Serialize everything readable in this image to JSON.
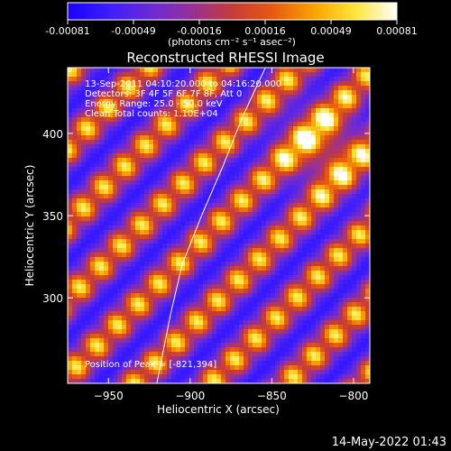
{
  "colorbar": {
    "ticks": [
      "-0.00081",
      "-0.00049",
      "-0.00016",
      "0.00016",
      "0.00049",
      "0.00081"
    ],
    "unit": "(photons cm⁻² s⁻¹ asec⁻²)",
    "colors": [
      "#1a00ff",
      "#3d1dff",
      "#6a2ad6",
      "#96309b",
      "#c53c36",
      "#e85a10",
      "#f8a400",
      "#ffe63a",
      "#ffffff"
    ]
  },
  "chart_data": {
    "type": "heatmap",
    "title": "Reconstructed RHESSI Image",
    "xlabel": "Heliocentric X (arcsec)",
    "ylabel": "Heliocentric Y (arcsec)",
    "xlim": [
      -975,
      -790
    ],
    "ylim": [
      248,
      440
    ],
    "xticks": [
      -950,
      -900,
      -850,
      -800
    ],
    "yticks": [
      300,
      350,
      400
    ],
    "xtick_labels": [
      "−950",
      "−900",
      "−850",
      "−800"
    ],
    "ytick_labels": [
      "300",
      "350",
      "400"
    ],
    "value_range": [
      -0.00081,
      0.00081
    ],
    "peak": [
      -821,
      394
    ],
    "limb_curve": [
      [
        -922,
        240
      ],
      [
        -912,
        290
      ],
      [
        -905,
        320
      ],
      [
        -893,
        350
      ],
      [
        -880,
        380
      ],
      [
        -868,
        410
      ],
      [
        -853,
        442
      ]
    ],
    "annotations": {
      "time": "13-Sep-2011 04:10:20.000 to 04:16:20.000",
      "detectors": "Detectors: 3F 4F 5F 6F 7F 8F, Att 0",
      "energy": "Energy Range: 25.0 - 50.0 keV",
      "method": "Clean    Total counts: 1.10E+04",
      "peak_text": "Position of Peak = [-821,394]"
    }
  },
  "footer": {
    "date": "14-May-2022 01:43"
  }
}
